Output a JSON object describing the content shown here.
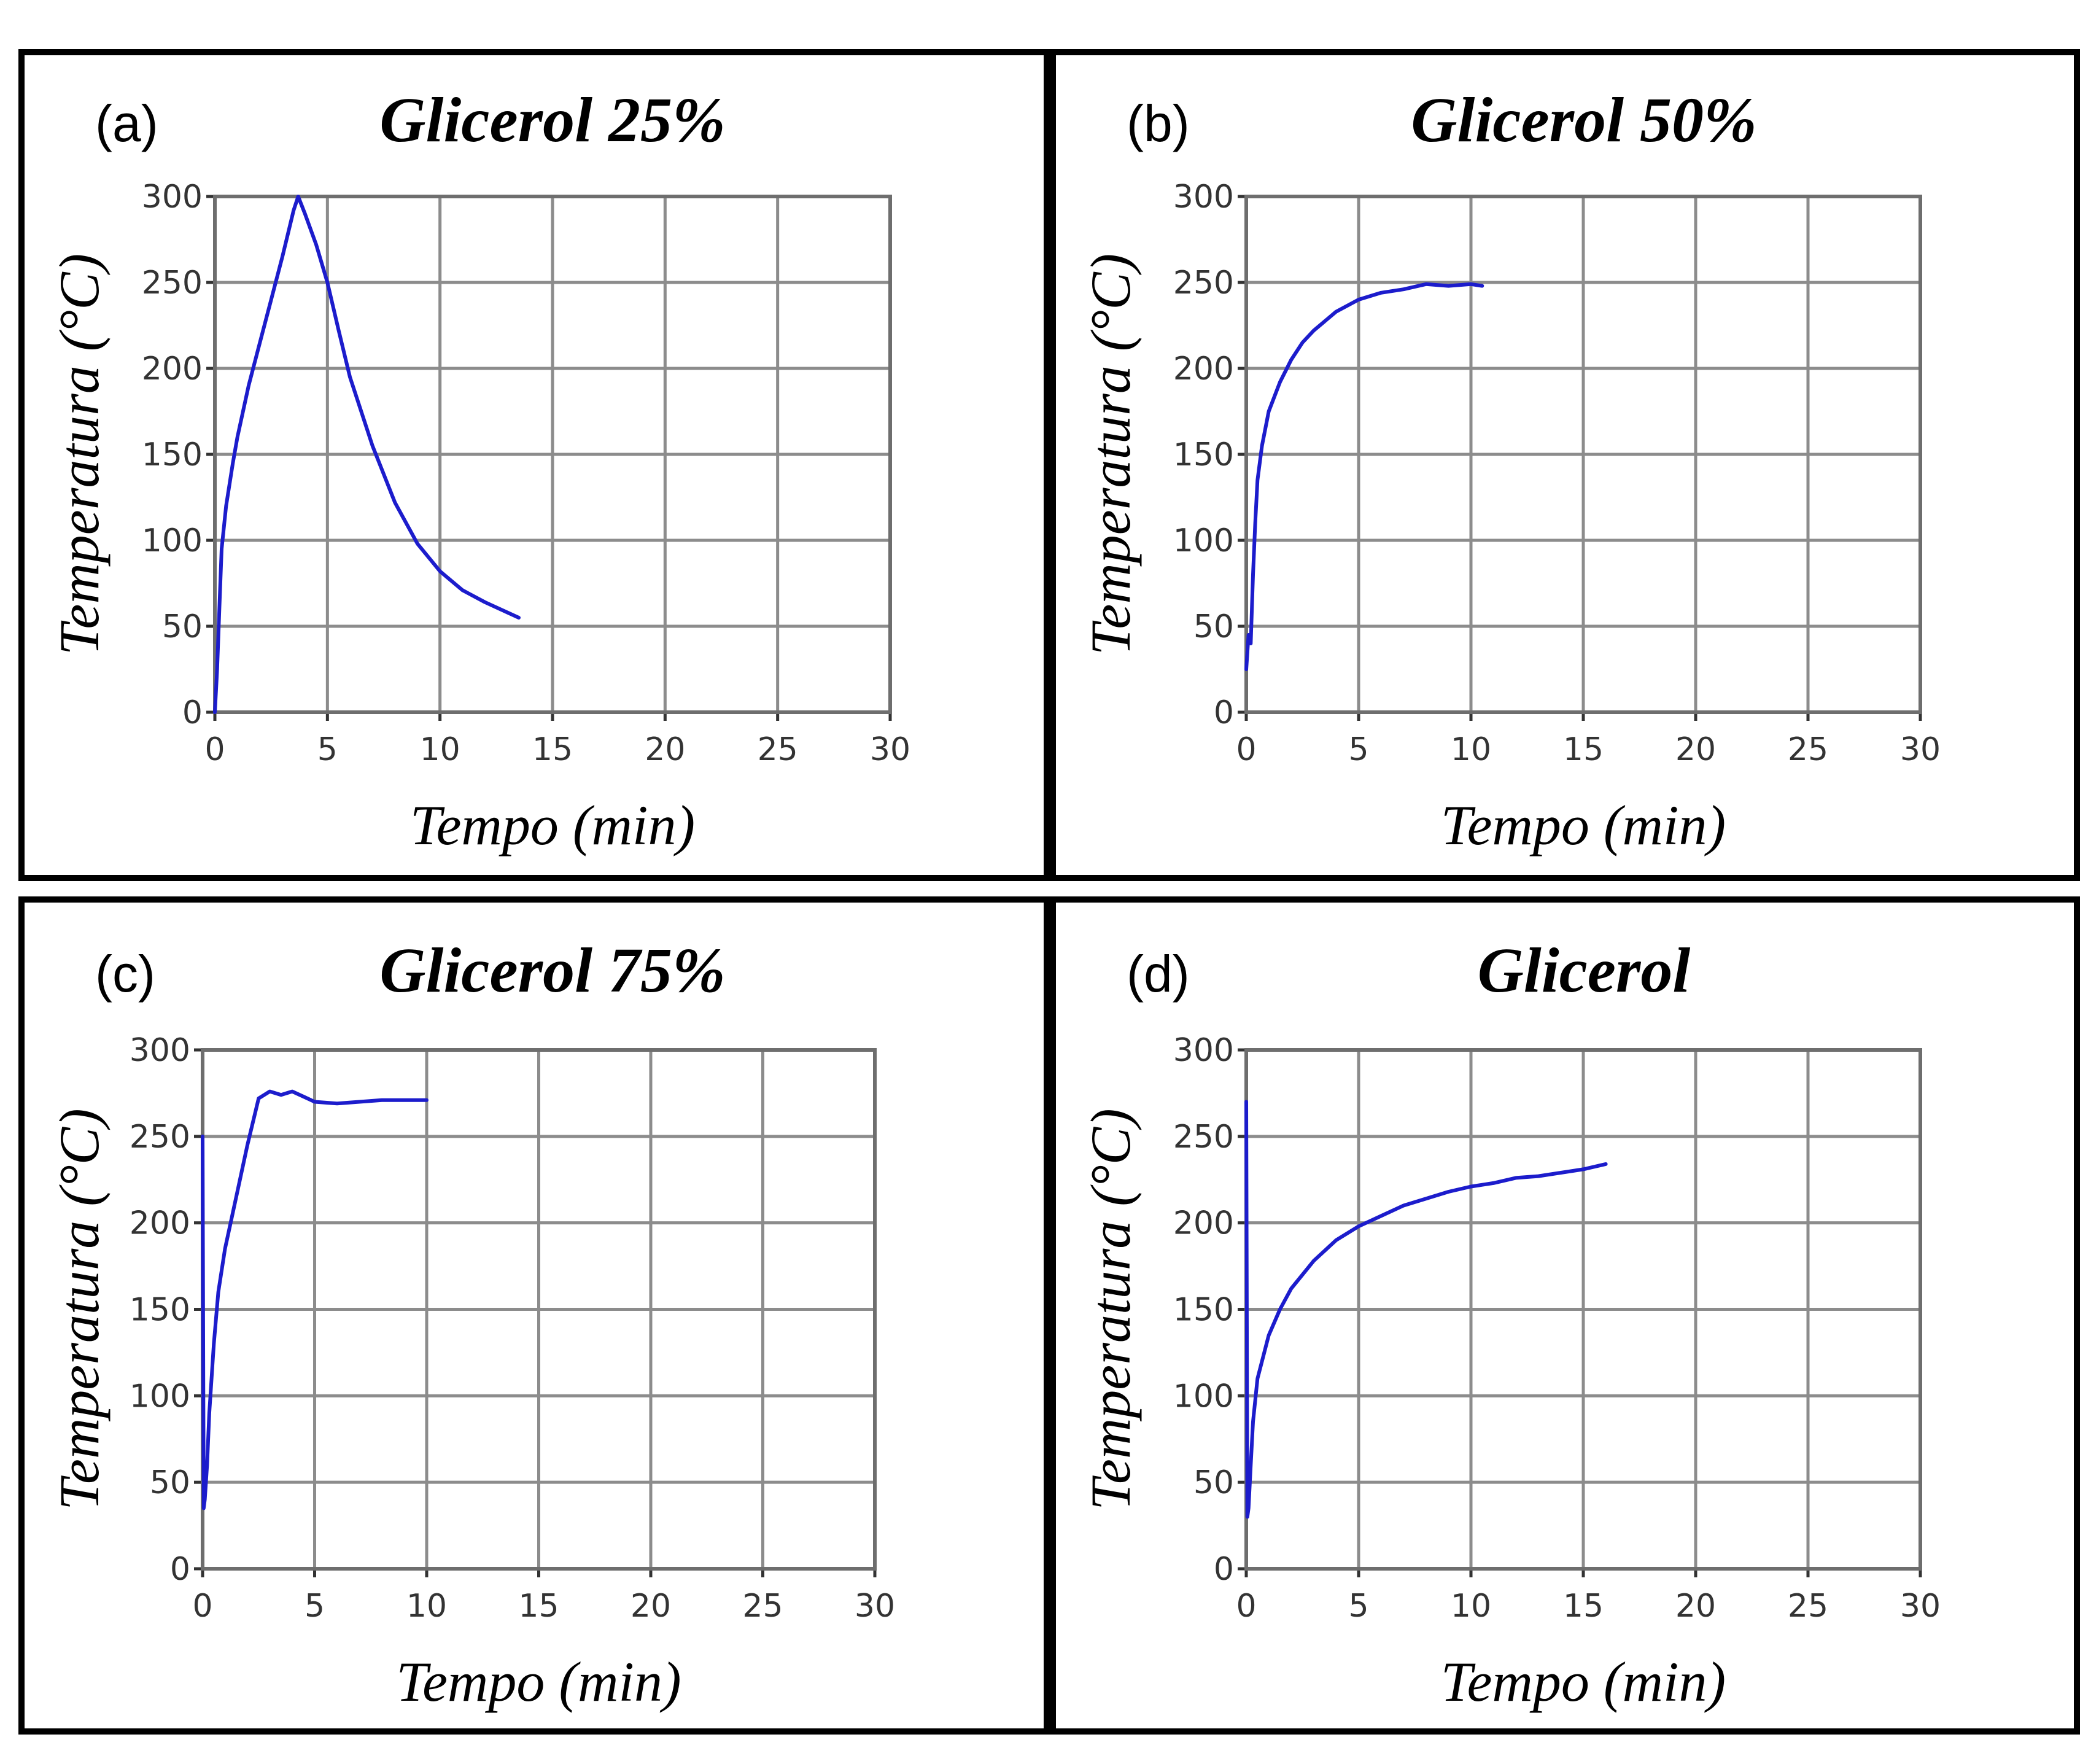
{
  "figure": {
    "colors": {
      "line": "#1c1ccc",
      "grid": "#8c8c8c",
      "border": "#000000"
    }
  },
  "chart_data": [
    {
      "type": "line",
      "panel_tag": "(a)",
      "title": "Glicerol 25%",
      "xlabel": "Tempo (min)",
      "ylabel": "Temperatura (°C)",
      "xlim": [
        0,
        30
      ],
      "ylim": [
        0,
        300
      ],
      "xticks": [
        "0",
        "5",
        "10",
        "15",
        "20",
        "25",
        "30"
      ],
      "yticks": [
        "0",
        "50",
        "100",
        "150",
        "200",
        "250",
        "300"
      ],
      "grid": true,
      "series": [
        {
          "name": "Glicerol 25%",
          "x": [
            0,
            0.1,
            0.2,
            0.3,
            0.5,
            0.8,
            1.0,
            1.5,
            2.0,
            2.5,
            3.0,
            3.5,
            3.7,
            4.0,
            4.5,
            5.0,
            5.5,
            6.0,
            7.0,
            8.0,
            9.0,
            10.0,
            11.0,
            12.0,
            13.0,
            13.5
          ],
          "y": [
            0,
            25,
            60,
            95,
            120,
            145,
            160,
            190,
            215,
            240,
            265,
            292,
            300,
            290,
            272,
            250,
            222,
            195,
            155,
            122,
            98,
            82,
            71,
            64,
            58,
            55
          ]
        }
      ]
    },
    {
      "type": "line",
      "panel_tag": "(b)",
      "title": "Glicerol 50%",
      "xlabel": "Tempo (min)",
      "ylabel": "Temperatura (°C)",
      "xlim": [
        0,
        30
      ],
      "ylim": [
        0,
        300
      ],
      "xticks": [
        "0",
        "5",
        "10",
        "15",
        "20",
        "25",
        "30"
      ],
      "yticks": [
        "0",
        "50",
        "100",
        "150",
        "200",
        "250",
        "300"
      ],
      "grid": true,
      "series": [
        {
          "name": "Glicerol 50%",
          "x": [
            0,
            0.1,
            0.2,
            0.3,
            0.4,
            0.5,
            0.7,
            1.0,
            1.5,
            2.0,
            2.5,
            3.0,
            4.0,
            5.0,
            6.0,
            7.0,
            8.0,
            9.0,
            10.0,
            10.5
          ],
          "y": [
            25,
            45,
            40,
            80,
            110,
            135,
            155,
            175,
            192,
            205,
            215,
            222,
            233,
            240,
            244,
            246,
            249,
            248,
            249,
            248
          ]
        }
      ]
    },
    {
      "type": "line",
      "panel_tag": "(c)",
      "title": "Glicerol 75%",
      "xlabel": "Tempo (min)",
      "ylabel": "Temperatura (°C)",
      "xlim": [
        0,
        30
      ],
      "ylim": [
        0,
        300
      ],
      "xticks": [
        "0",
        "5",
        "10",
        "15",
        "20",
        "25",
        "30"
      ],
      "yticks": [
        "0",
        "50",
        "100",
        "150",
        "200",
        "250",
        "300"
      ],
      "grid": true,
      "series": [
        {
          "name": "Glicerol 75%",
          "x": [
            0,
            0.05,
            0.1,
            0.2,
            0.3,
            0.4,
            0.5,
            0.7,
            1.0,
            1.5,
            2.0,
            2.5,
            3.0,
            3.5,
            4.0,
            4.5,
            5.0,
            6.0,
            7.0,
            8.0,
            9.0,
            10.0
          ],
          "y": [
            250,
            35,
            40,
            60,
            90,
            110,
            130,
            160,
            185,
            215,
            245,
            272,
            276,
            274,
            276,
            273,
            270,
            269,
            270,
            271,
            271,
            271
          ]
        }
      ]
    },
    {
      "type": "line",
      "panel_tag": "(d)",
      "title": "Glicerol",
      "xlabel": "Tempo (min)",
      "ylabel": "Temperatura (°C)",
      "xlim": [
        0,
        30
      ],
      "ylim": [
        0,
        300
      ],
      "xticks": [
        "0",
        "5",
        "10",
        "15",
        "20",
        "25",
        "30"
      ],
      "yticks": [
        "0",
        "50",
        "100",
        "150",
        "200",
        "250",
        "300"
      ],
      "grid": true,
      "series": [
        {
          "name": "Glicerol",
          "x": [
            0,
            0.05,
            0.1,
            0.2,
            0.3,
            0.5,
            0.8,
            1.0,
            1.5,
            2.0,
            3.0,
            4.0,
            5.0,
            6.0,
            7.0,
            8.0,
            9.0,
            10.0,
            11.0,
            12.0,
            13.0,
            14.0,
            15.0,
            16.0
          ],
          "y": [
            270,
            30,
            35,
            60,
            85,
            110,
            125,
            135,
            150,
            162,
            178,
            190,
            198,
            204,
            210,
            214,
            218,
            221,
            223,
            226,
            227,
            229,
            231,
            234
          ]
        }
      ]
    }
  ]
}
